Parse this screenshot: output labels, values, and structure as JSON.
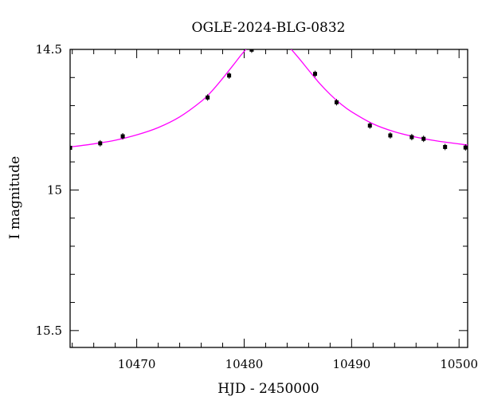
{
  "chart_data": {
    "type": "scatter",
    "title": "OGLE-2024-BLG-0832",
    "xlabel": "HJD - 2450000",
    "ylabel": "I magnitude",
    "xlim": [
      10463.8,
      10500.8
    ],
    "ylim": [
      15.56,
      14.5
    ],
    "y_inverted": true,
    "x_ticks": [
      10470,
      10480,
      10490,
      10500
    ],
    "x_tick_labels": [
      "10470",
      "10480",
      "10490",
      "10500"
    ],
    "y_ticks": [
      14.5,
      15,
      15.5
    ],
    "y_tick_labels": [
      "14.5",
      "15",
      "15.5"
    ],
    "grid": false,
    "legend": "none",
    "series": [
      {
        "kind": "points",
        "color": "#000000",
        "x": [
          10463.8,
          10466.6,
          10468.7,
          10476.6,
          10478.6,
          10480.7,
          10486.6,
          10488.6,
          10491.7,
          10493.6,
          10495.6,
          10496.7,
          10498.7,
          10500.6
        ],
        "y": [
          14.85,
          14.834,
          14.809,
          14.671,
          14.593,
          14.501,
          14.587,
          14.688,
          14.771,
          14.806,
          14.812,
          14.818,
          14.847,
          14.849
        ]
      },
      {
        "kind": "model",
        "color": "#ff00ff",
        "x": [
          10463.8,
          10466,
          10468,
          10470,
          10472,
          10474,
          10476,
          10477,
          10478,
          10479,
          10480,
          10481,
          10482,
          10482.5,
          10483,
          10484,
          10485,
          10486,
          10487,
          10488,
          10489,
          10490,
          10492,
          10494,
          10496,
          10498,
          10500.8
        ],
        "y": [
          14.847,
          14.836,
          14.823,
          14.804,
          14.778,
          14.74,
          14.685,
          14.648,
          14.603,
          14.555,
          14.507,
          14.47,
          14.452,
          14.452,
          14.458,
          14.485,
          14.527,
          14.574,
          14.62,
          14.66,
          14.694,
          14.722,
          14.765,
          14.793,
          14.812,
          14.826,
          14.84
        ]
      }
    ]
  }
}
